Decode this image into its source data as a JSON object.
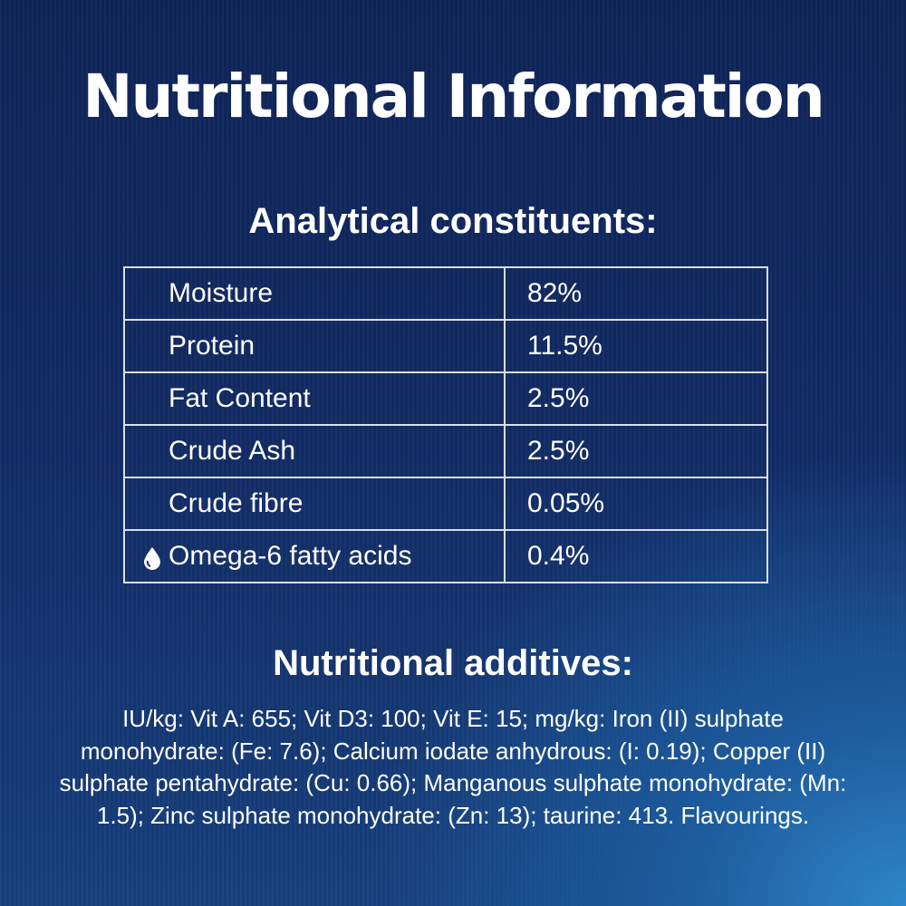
{
  "title": "Nutritional Information",
  "analytical": {
    "heading": "Analytical constituents:",
    "rows": [
      {
        "label": "Moisture",
        "value": "82%"
      },
      {
        "label": "Protein",
        "value": "11.5%"
      },
      {
        "label": "Fat Content",
        "value": "2.5%"
      },
      {
        "label": "Crude Ash",
        "value": "2.5%"
      },
      {
        "label": "Crude fibre",
        "value": "0.05%"
      },
      {
        "label": "Omega-6 fatty acids",
        "value": "0.4%",
        "icon": "water-drop-icon"
      }
    ]
  },
  "additives": {
    "heading": "Nutritional additives:",
    "text": "IU/kg: Vit A: 655; Vit D3: 100; Vit E: 15; mg/kg: Iron (II) sulphate monohydrate: (Fe: 7.6); Calcium iodate anhydrous: (I: 0.19); Copper (II) sulphate pentahydrate: (Cu: 0.66); Manganous sulphate monohydrate: (Mn: 1.5); Zinc sulphate monohydrate: (Zn: 13); taurine: 413. Flavourings."
  }
}
